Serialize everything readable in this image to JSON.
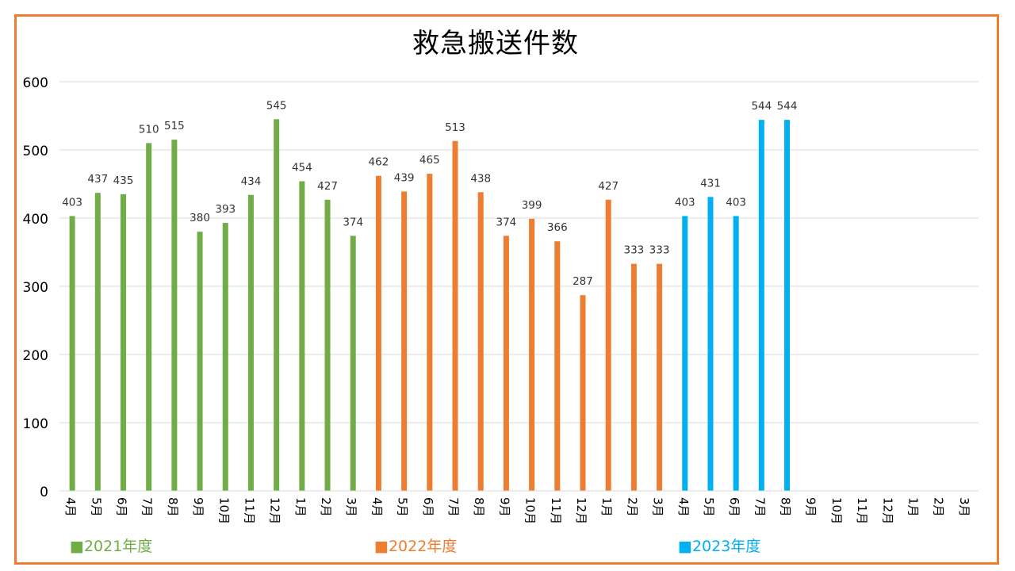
{
  "chart_data": {
    "type": "bar",
    "title": "救急搬送件数",
    "xlabel": "",
    "ylabel": "",
    "ylim": [
      0,
      600
    ],
    "yticks": [
      0,
      100,
      200,
      300,
      400,
      500,
      600
    ],
    "grid": true,
    "categories": [
      "4月",
      "5月",
      "6月",
      "7月",
      "8月",
      "9月",
      "10月",
      "11月",
      "12月",
      "1月",
      "2月",
      "3月",
      "4月",
      "5月",
      "6月",
      "7月",
      "8月",
      "9月",
      "10月",
      "11月",
      "12月",
      "1月",
      "2月",
      "3月",
      "4月",
      "5月",
      "6月",
      "7月",
      "8月",
      "9月",
      "10月",
      "11月",
      "12月",
      "1月",
      "2月",
      "3月"
    ],
    "series": [
      {
        "name": "2021年度",
        "color": "#70AD47",
        "start_index": 0,
        "values": [
          403,
          437,
          435,
          510,
          515,
          380,
          393,
          434,
          545,
          454,
          427,
          374
        ]
      },
      {
        "name": "2022年度",
        "color": "#ED7D31",
        "start_index": 12,
        "values": [
          462,
          439,
          465,
          513,
          438,
          374,
          399,
          366,
          287,
          427,
          333,
          333
        ]
      },
      {
        "name": "2023年度",
        "color": "#00B0F0",
        "start_index": 24,
        "values": [
          403,
          431,
          403,
          544,
          544,
          null,
          null,
          null,
          null,
          null,
          null,
          null
        ]
      }
    ],
    "data_labels": true,
    "legend_placement": "bottom"
  },
  "legend": [
    {
      "label": "■2021年度",
      "color": "#70AD47"
    },
    {
      "label": "■2022年度",
      "color": "#ED7D31"
    },
    {
      "label": "■2023年度",
      "color": "#00B0F0"
    }
  ],
  "frame_color": "#ED7D31"
}
